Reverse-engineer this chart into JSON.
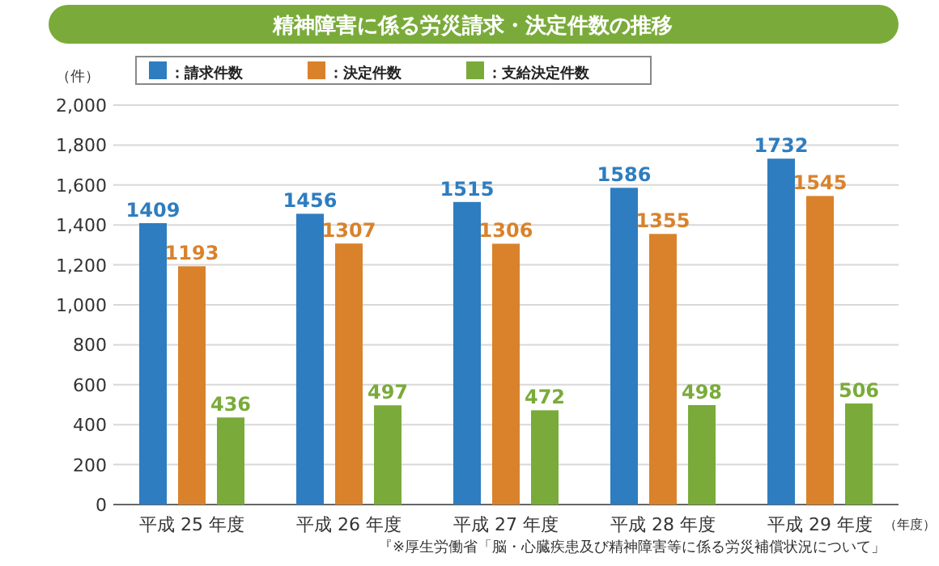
{
  "chart_data": {
    "type": "bar",
    "title": "精神障害に係る労災請求・決定件数の推移",
    "ylabel": "（件）",
    "xlabel": "（年度）",
    "annotations": [
      "『※厚生労働省「脳・心臓疾患及び精神障害等に係る労災補償状況について」"
    ],
    "categories": [
      "平成 25 年度",
      "平成 26 年度",
      "平成 27 年度",
      "平成 28 年度",
      "平成 29 年度"
    ],
    "series": [
      {
        "name": "：請求件数",
        "color": "#2e7dc0",
        "values": [
          1409,
          1456,
          1515,
          1586,
          1732
        ]
      },
      {
        "name": "：決定件数",
        "color": "#d9822b",
        "values": [
          1193,
          1307,
          1306,
          1355,
          1545
        ]
      },
      {
        "name": "：支給決定件数",
        "color": "#7aab3a",
        "values": [
          436,
          497,
          472,
          498,
          506
        ]
      }
    ],
    "ylim": [
      0,
      2000
    ],
    "yticks": [
      {
        "value": 0,
        "label": "0"
      },
      {
        "value": 200,
        "label": "200"
      },
      {
        "value": 400,
        "label": "400"
      },
      {
        "value": 600,
        "label": "600"
      },
      {
        "value": 800,
        "label": "800"
      },
      {
        "value": 1000,
        "label": "1,000"
      },
      {
        "value": 1200,
        "label": "1,200"
      },
      {
        "value": 1400,
        "label": "1,400"
      },
      {
        "value": 1600,
        "label": "1,600"
      },
      {
        "value": 1800,
        "label": "1,800"
      },
      {
        "value": 2000,
        "label": "2,000"
      }
    ],
    "grid": "y",
    "legend": "top",
    "data_labels": true
  }
}
